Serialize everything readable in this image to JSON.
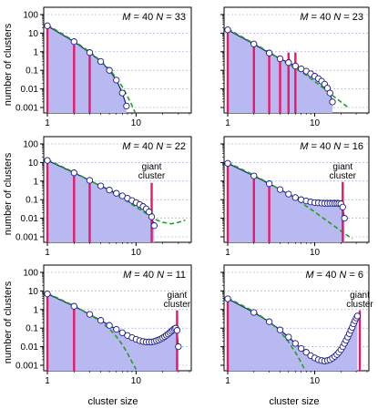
{
  "figure": {
    "ylabel": "number of clusters",
    "xlabel": "cluster size"
  },
  "colors": {
    "fill": "#b9b9f2",
    "curve": "#1a1a8c",
    "bar": "#e8186a",
    "dashed": "#22a022",
    "marker_edge": "#1a1a8c",
    "grid": "#9a9ae6"
  },
  "chart_data": [
    {
      "type": "scatter",
      "x_scale": "log",
      "y_scale": "log",
      "xlim": [
        1,
        40
      ],
      "ylim": [
        0.001,
        100
      ],
      "x_ticks": [
        1,
        10
      ],
      "x_tick_labels": [
        "1",
        "10"
      ],
      "y_ticks": [
        0.001,
        0.01,
        0.1,
        1,
        10,
        100
      ],
      "y_tick_labels": [
        "0.001",
        "0.01",
        "0.1",
        "1",
        "10",
        "100"
      ],
      "grid": true,
      "ylabel": "number of clusters",
      "xlabel": "",
      "annotation": {
        "M": "40",
        "N": "33"
      },
      "giant_label": "",
      "points": [
        [
          1,
          25
        ],
        [
          2,
          3.5
        ],
        [
          3,
          0.9
        ],
        [
          4,
          0.3
        ],
        [
          5,
          0.1
        ],
        [
          6,
          0.03
        ],
        [
          7,
          0.006
        ],
        [
          7.8,
          0.0012
        ]
      ],
      "bars": [
        [
          1,
          27
        ],
        [
          2,
          2.3
        ],
        [
          3,
          0.9
        ]
      ],
      "dashed_poisson": [
        [
          1,
          28
        ],
        [
          2,
          3.8
        ],
        [
          3,
          1.0
        ],
        [
          4,
          0.32
        ],
        [
          5,
          0.11
        ],
        [
          6,
          0.04
        ],
        [
          7,
          0.013
        ],
        [
          8,
          0.004
        ],
        [
          9,
          0.0013
        ],
        [
          10,
          0.0004
        ]
      ]
    },
    {
      "type": "scatter",
      "x_scale": "log",
      "y_scale": "log",
      "xlim": [
        1,
        40
      ],
      "ylim": [
        0.001,
        100
      ],
      "x_ticks": [
        1,
        10
      ],
      "x_tick_labels": [
        "1",
        "10"
      ],
      "y_ticks": [
        0.001,
        0.01,
        0.1,
        1,
        10,
        100
      ],
      "y_tick_labels": [
        "",
        "",
        "",
        "",
        "",
        ""
      ],
      "grid": true,
      "ylabel": "",
      "xlabel": "",
      "annotation": {
        "M": "40",
        "N": "23"
      },
      "giant_label": "",
      "points": [
        [
          1,
          15
        ],
        [
          2,
          2.6
        ],
        [
          3,
          0.85
        ],
        [
          4,
          0.42
        ],
        [
          5,
          0.26
        ],
        [
          6,
          0.17
        ],
        [
          7,
          0.12
        ],
        [
          8,
          0.09
        ],
        [
          9,
          0.065
        ],
        [
          10,
          0.048
        ],
        [
          11,
          0.036
        ],
        [
          12,
          0.026
        ],
        [
          13,
          0.018
        ],
        [
          14,
          0.011
        ],
        [
          15,
          0.006
        ],
        [
          16,
          0.002
        ]
      ],
      "bars": [
        [
          1,
          15
        ],
        [
          2,
          2.4
        ],
        [
          3,
          0.9
        ],
        [
          4,
          0.5
        ],
        [
          5,
          0.9
        ],
        [
          6,
          0.9
        ]
      ],
      "dashed_poisson": [
        [
          1,
          17
        ],
        [
          2,
          2.8
        ],
        [
          3,
          0.95
        ],
        [
          4,
          0.42
        ],
        [
          5,
          0.22
        ],
        [
          6,
          0.13
        ],
        [
          8,
          0.055
        ],
        [
          10,
          0.025
        ],
        [
          13,
          0.01
        ],
        [
          16,
          0.0045
        ],
        [
          20,
          0.002
        ],
        [
          25,
          0.0009
        ]
      ]
    },
    {
      "type": "scatter",
      "x_scale": "log",
      "y_scale": "log",
      "xlim": [
        1,
        40
      ],
      "ylim": [
        0.001,
        100
      ],
      "x_ticks": [
        1,
        10
      ],
      "x_tick_labels": [
        "1",
        "10"
      ],
      "y_ticks": [
        0.001,
        0.01,
        0.1,
        1,
        10,
        100
      ],
      "y_tick_labels": [
        "0.001",
        "0.01",
        "0.1",
        "1",
        "10",
        "100"
      ],
      "grid": true,
      "ylabel": "number of clusters",
      "xlabel": "",
      "annotation": {
        "M": "40",
        "N": "22"
      },
      "giant_label": "giant cluster",
      "points": [
        [
          1,
          13
        ],
        [
          2,
          2.8
        ],
        [
          3,
          1.1
        ],
        [
          4,
          0.55
        ],
        [
          5,
          0.33
        ],
        [
          6,
          0.22
        ],
        [
          7,
          0.16
        ],
        [
          8,
          0.12
        ],
        [
          9,
          0.09
        ],
        [
          10,
          0.07
        ],
        [
          11,
          0.055
        ],
        [
          12,
          0.043
        ],
        [
          13,
          0.032
        ],
        [
          14,
          0.022
        ],
        [
          15,
          0.012
        ],
        [
          16,
          0.004
        ]
      ],
      "bars": [
        [
          1,
          13
        ],
        [
          2,
          2.5
        ],
        [
          3,
          1.1
        ],
        [
          15,
          0.8
        ]
      ],
      "dashed_poisson": [
        [
          1,
          14
        ],
        [
          2,
          3.0
        ],
        [
          3,
          1.1
        ],
        [
          5,
          0.3
        ],
        [
          7,
          0.12
        ],
        [
          10,
          0.04
        ],
        [
          13,
          0.018
        ],
        [
          16,
          0.009
        ],
        [
          20,
          0.006
        ],
        [
          25,
          0.005
        ],
        [
          30,
          0.006
        ],
        [
          36,
          0.008
        ]
      ]
    },
    {
      "type": "scatter",
      "x_scale": "log",
      "y_scale": "log",
      "xlim": [
        1,
        40
      ],
      "ylim": [
        0.001,
        100
      ],
      "x_ticks": [
        1,
        10
      ],
      "x_tick_labels": [
        "1",
        "10"
      ],
      "y_ticks": [
        0.001,
        0.01,
        0.1,
        1,
        10,
        100
      ],
      "y_tick_labels": [
        "",
        "",
        "",
        "",
        "",
        ""
      ],
      "grid": true,
      "ylabel": "",
      "xlabel": "",
      "annotation": {
        "M": "40",
        "N": "16"
      },
      "giant_label": "giant cluster",
      "points": [
        [
          1,
          9
        ],
        [
          2,
          1.9
        ],
        [
          3,
          0.72
        ],
        [
          4,
          0.35
        ],
        [
          5,
          0.2
        ],
        [
          6,
          0.13
        ],
        [
          7,
          0.1
        ],
        [
          8,
          0.085
        ],
        [
          9,
          0.075
        ],
        [
          10,
          0.07
        ],
        [
          11,
          0.067
        ],
        [
          12,
          0.065
        ],
        [
          13,
          0.064
        ],
        [
          14,
          0.064
        ],
        [
          15,
          0.064
        ],
        [
          16,
          0.064
        ],
        [
          17,
          0.064
        ],
        [
          18,
          0.064
        ],
        [
          19,
          0.063
        ],
        [
          20,
          0.06
        ],
        [
          21,
          0.04
        ],
        [
          22,
          0.01
        ]
      ],
      "bars": [
        [
          1,
          9
        ],
        [
          2,
          1.8
        ],
        [
          3,
          0.7
        ],
        [
          21,
          0.9
        ]
      ],
      "dashed_poisson": [
        [
          1,
          10
        ],
        [
          2,
          2.1
        ],
        [
          3,
          0.75
        ],
        [
          5,
          0.2
        ],
        [
          7,
          0.07
        ],
        [
          10,
          0.022
        ],
        [
          14,
          0.007
        ],
        [
          18,
          0.003
        ],
        [
          22,
          0.0015
        ],
        [
          27,
          0.0008
        ]
      ]
    },
    {
      "type": "scatter",
      "x_scale": "log",
      "y_scale": "log",
      "xlim": [
        1,
        40
      ],
      "ylim": [
        0.001,
        100
      ],
      "x_ticks": [
        1,
        10
      ],
      "x_tick_labels": [
        "1",
        "10"
      ],
      "y_ticks": [
        0.001,
        0.01,
        0.1,
        1,
        10,
        100
      ],
      "y_tick_labels": [
        "0.001",
        "0.01",
        "0.1",
        "1",
        "10",
        "100"
      ],
      "grid": true,
      "ylabel": "number of clusters",
      "xlabel": "cluster size",
      "annotation": {
        "M": "40",
        "N": "11"
      },
      "giant_label": "giant cluster",
      "points": [
        [
          1,
          7
        ],
        [
          2,
          1.5
        ],
        [
          3,
          0.55
        ],
        [
          4,
          0.26
        ],
        [
          5,
          0.14
        ],
        [
          6,
          0.085
        ],
        [
          7,
          0.056
        ],
        [
          8,
          0.04
        ],
        [
          9,
          0.031
        ],
        [
          10,
          0.025
        ],
        [
          11,
          0.021
        ],
        [
          12,
          0.019
        ],
        [
          13,
          0.018
        ],
        [
          14,
          0.018
        ],
        [
          15,
          0.018
        ],
        [
          16,
          0.019
        ],
        [
          17,
          0.021
        ],
        [
          18,
          0.023
        ],
        [
          19,
          0.026
        ],
        [
          20,
          0.03
        ],
        [
          21,
          0.035
        ],
        [
          22,
          0.041
        ],
        [
          23,
          0.048
        ],
        [
          24,
          0.057
        ],
        [
          25,
          0.067
        ],
        [
          26,
          0.079
        ],
        [
          27,
          0.092
        ],
        [
          28,
          0.1
        ],
        [
          29,
          0.075
        ],
        [
          30,
          0.01
        ]
      ],
      "bars": [
        [
          1,
          7
        ],
        [
          2,
          1.4
        ],
        [
          29,
          0.9
        ]
      ],
      "dashed_poisson": [
        [
          1,
          7.5
        ],
        [
          2,
          1.6
        ],
        [
          3,
          0.55
        ],
        [
          4,
          0.22
        ],
        [
          5,
          0.09
        ],
        [
          6,
          0.035
        ],
        [
          7,
          0.013
        ],
        [
          8,
          0.0045
        ],
        [
          9,
          0.0015
        ],
        [
          10,
          0.0006
        ]
      ]
    },
    {
      "type": "scatter",
      "x_scale": "log",
      "y_scale": "log",
      "xlim": [
        1,
        40
      ],
      "ylim": [
        0.001,
        100
      ],
      "x_ticks": [
        1,
        10
      ],
      "x_tick_labels": [
        "1",
        "10"
      ],
      "y_ticks": [
        0.001,
        0.01,
        0.1,
        1,
        10,
        100
      ],
      "y_tick_labels": [
        "",
        "",
        "",
        "",
        "",
        ""
      ],
      "grid": true,
      "ylabel": "",
      "xlabel": "cluster size",
      "annotation": {
        "M": "40",
        "N": "6"
      },
      "giant_label": "giant cluster",
      "points": [
        [
          1,
          3.8
        ],
        [
          2,
          0.7
        ],
        [
          3,
          0.22
        ],
        [
          4,
          0.08
        ],
        [
          5,
          0.033
        ],
        [
          6,
          0.015
        ],
        [
          7,
          0.008
        ],
        [
          8,
          0.005
        ],
        [
          9,
          0.0033
        ],
        [
          10,
          0.0025
        ],
        [
          11,
          0.002
        ],
        [
          12,
          0.0018
        ],
        [
          13,
          0.0017
        ],
        [
          14,
          0.0018
        ],
        [
          15,
          0.002
        ],
        [
          16,
          0.0024
        ],
        [
          17,
          0.003
        ],
        [
          18,
          0.0038
        ],
        [
          19,
          0.005
        ],
        [
          20,
          0.007
        ],
        [
          21,
          0.01
        ],
        [
          22,
          0.015
        ],
        [
          23,
          0.022
        ],
        [
          24,
          0.033
        ],
        [
          25,
          0.05
        ],
        [
          26,
          0.075
        ],
        [
          27,
          0.11
        ],
        [
          28,
          0.17
        ],
        [
          29,
          0.25
        ],
        [
          30,
          0.35
        ],
        [
          31,
          0.45
        ]
      ],
      "bars": [
        [
          1,
          4
        ],
        [
          33,
          0.9
        ]
      ],
      "dashed_poisson": [
        [
          1,
          4.2
        ],
        [
          2,
          0.8
        ],
        [
          3,
          0.22
        ],
        [
          4,
          0.065
        ],
        [
          5,
          0.018
        ],
        [
          6,
          0.005
        ],
        [
          7,
          0.0014
        ],
        [
          8,
          0.0004
        ]
      ]
    }
  ]
}
